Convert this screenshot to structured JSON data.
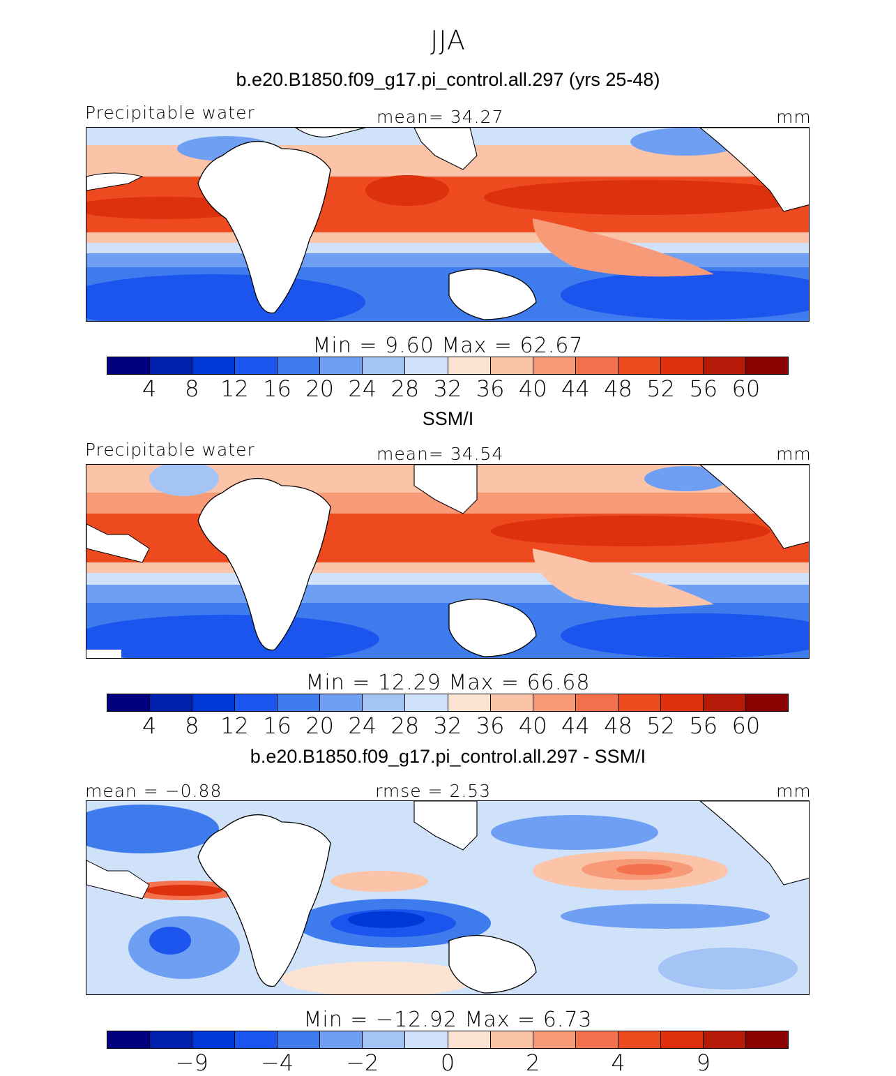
{
  "season": "JJA",
  "colors": {
    "palette_16": [
      "#00007f",
      "#0020b0",
      "#0038d8",
      "#1c55ee",
      "#3e7cee",
      "#6f9ff2",
      "#a4c4f6",
      "#cfe2fa",
      "#fde4d2",
      "#fbc3a8",
      "#f79a78",
      "#f3714c",
      "#ee4a20",
      "#dd300c",
      "#b51a08",
      "#8b0000"
    ]
  },
  "panels": [
    {
      "id": "model",
      "title": "b.e20.B1850.f09_g17.pi_control.all.297 (yrs 25-48)",
      "left_label": "Precipitable water",
      "center_label": "mean=  34.27",
      "units": "mm",
      "minmax": "Min =    9.60  Max =   62.67",
      "ticks": [
        "4",
        "8",
        "12",
        "16",
        "20",
        "24",
        "28",
        "32",
        "36",
        "40",
        "44",
        "48",
        "52",
        "56",
        "60"
      ]
    },
    {
      "id": "obs",
      "title": "SSM/I",
      "left_label": "Precipitable water",
      "center_label": "mean=  34.54",
      "units": "mm",
      "minmax": "Min =   12.29  Max =   66.68",
      "ticks": [
        "4",
        "8",
        "12",
        "16",
        "20",
        "24",
        "28",
        "32",
        "36",
        "40",
        "44",
        "48",
        "52",
        "56",
        "60"
      ]
    },
    {
      "id": "diff",
      "title": "b.e20.B1850.f09_g17.pi_control.all.297 - SSM/I",
      "left_label": "mean =  −0.88",
      "center_label": "rmse =    2.53",
      "units": "mm",
      "minmax": "Min = −12.92  Max =    6.73",
      "ticks": [
        "−9",
        "−4",
        "−2",
        "0",
        "2",
        "4",
        "9"
      ]
    }
  ]
}
